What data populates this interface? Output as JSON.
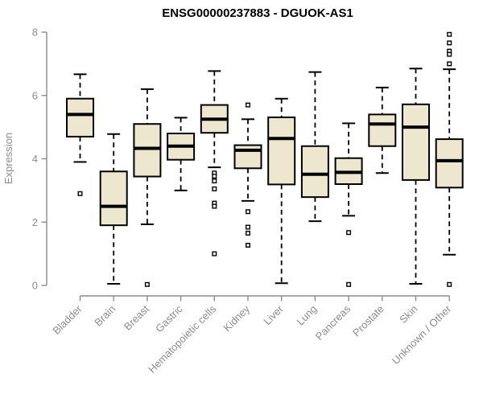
{
  "chart_data": {
    "type": "boxplot",
    "title": "ENSG00000237883 - DGUOK-AS1",
    "ylabel": "Expression",
    "xlabel": "",
    "ylim": [
      0,
      8
    ],
    "yticks": [
      0,
      2,
      4,
      6,
      8
    ],
    "grid": false,
    "legend": "none",
    "categories": [
      "Bladder",
      "Brain",
      "Breast",
      "Gastric",
      "Hematopoietic cells",
      "Kidney",
      "Liver",
      "Lung",
      "Pancreas",
      "Prostate",
      "Skin",
      "Unknown / Other"
    ],
    "series": [
      {
        "category": "Bladder",
        "low": 3.9,
        "q1": 4.7,
        "median": 5.4,
        "q3": 5.9,
        "high": 6.67,
        "outliers": [
          2.9
        ]
      },
      {
        "category": "Brain",
        "low": 0.05,
        "q1": 1.9,
        "median": 2.5,
        "q3": 3.6,
        "high": 4.78,
        "outliers": []
      },
      {
        "category": "Breast",
        "low": 1.93,
        "q1": 3.44,
        "median": 4.33,
        "q3": 5.1,
        "high": 6.2,
        "outliers": [
          0.03
        ]
      },
      {
        "category": "Gastric",
        "low": 3.0,
        "q1": 3.97,
        "median": 4.4,
        "q3": 4.8,
        "high": 5.3,
        "outliers": []
      },
      {
        "category": "Hematopoietic cells",
        "low": 3.73,
        "q1": 4.82,
        "median": 5.25,
        "q3": 5.7,
        "high": 6.77,
        "outliers": [
          3.55,
          3.45,
          3.3,
          3.05,
          2.6,
          2.5,
          1.0
        ]
      },
      {
        "category": "Kidney",
        "low": 2.67,
        "q1": 3.7,
        "median": 4.27,
        "q3": 4.43,
        "high": 5.25,
        "outliers": [
          5.7,
          2.33,
          1.84,
          1.65,
          1.27
        ]
      },
      {
        "category": "Liver",
        "low": 0.07,
        "q1": 3.19,
        "median": 4.64,
        "q3": 5.31,
        "high": 5.9,
        "outliers": []
      },
      {
        "category": "Lung",
        "low": 2.03,
        "q1": 2.79,
        "median": 3.51,
        "q3": 4.4,
        "high": 6.74,
        "outliers": []
      },
      {
        "category": "Pancreas",
        "low": 2.2,
        "q1": 3.2,
        "median": 3.57,
        "q3": 4.02,
        "high": 5.12,
        "outliers": [
          1.67,
          0.03
        ]
      },
      {
        "category": "Prostate",
        "low": 3.55,
        "q1": 4.4,
        "median": 5.1,
        "q3": 5.4,
        "high": 6.25,
        "outliers": []
      },
      {
        "category": "Skin",
        "low": 0.05,
        "q1": 3.33,
        "median": 5.0,
        "q3": 5.72,
        "high": 6.85,
        "outliers": []
      },
      {
        "category": "Unknown / Other",
        "low": 0.97,
        "q1": 3.09,
        "median": 3.94,
        "q3": 4.62,
        "high": 6.83,
        "outliers": [
          7.93,
          7.66,
          7.4,
          7.3,
          7.0,
          0.03
        ]
      }
    ],
    "colors": {
      "box_fill": "#EDE7CF",
      "box_stroke": "#000000",
      "median": "#000000",
      "whisker": "#000000",
      "outlier_stroke": "#000000",
      "outlier_fill": "#ffffff",
      "axis": "#8c8c8c",
      "title": "#000000",
      "background": "#ffffff"
    }
  }
}
